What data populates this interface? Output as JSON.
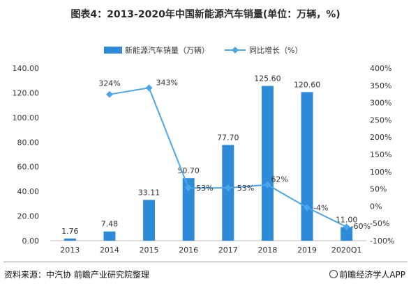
{
  "chart_data": {
    "type": "bar",
    "title": "图表4：2013-2020年中国新能源汽车销量(单位：万辆，%)",
    "categories": [
      "2013",
      "2014",
      "2015",
      "2016",
      "2017",
      "2018",
      "2019",
      "2020Q1"
    ],
    "series": [
      {
        "name": "新能源汽车销量（万辆）",
        "type": "bar",
        "axis": "left",
        "color": "#2e8bd9",
        "values": [
          1.76,
          7.48,
          33.11,
          50.7,
          77.7,
          125.6,
          120.6,
          11.0
        ],
        "labels": [
          "1.76",
          "7.48",
          "33.11",
          "50.70",
          "77.70",
          "125.60",
          "120.60",
          "11.00"
        ]
      },
      {
        "name": "同比增长（%）",
        "type": "line",
        "axis": "right",
        "color": "#4aa6e8",
        "values": [
          null,
          324,
          343,
          53,
          53,
          62,
          -4,
          -60
        ],
        "labels": [
          "",
          "324%",
          "343%",
          "53%",
          "53%",
          "62%",
          "-4%",
          "-60%"
        ]
      }
    ],
    "left_axis": {
      "min": 0,
      "max": 140,
      "ticks": [
        "0.00",
        "20.00",
        "40.00",
        "60.00",
        "80.00",
        "100.00",
        "120.00",
        "140.00"
      ]
    },
    "right_axis": {
      "min": -100,
      "max": 400,
      "ticks": [
        "-100%",
        "-50%",
        "0%",
        "50%",
        "100%",
        "150%",
        "200%",
        "250%",
        "300%",
        "350%",
        "400%"
      ]
    },
    "legend_position": "top-center",
    "grid": false
  },
  "footer": {
    "source": "资料来源：中汽协 前瞻产业研究院整理",
    "brand": "前瞻经济学人APP"
  },
  "colors": {
    "bar": "#2e8bd9",
    "line": "#4aa6e8",
    "axis_text": "#333333"
  }
}
